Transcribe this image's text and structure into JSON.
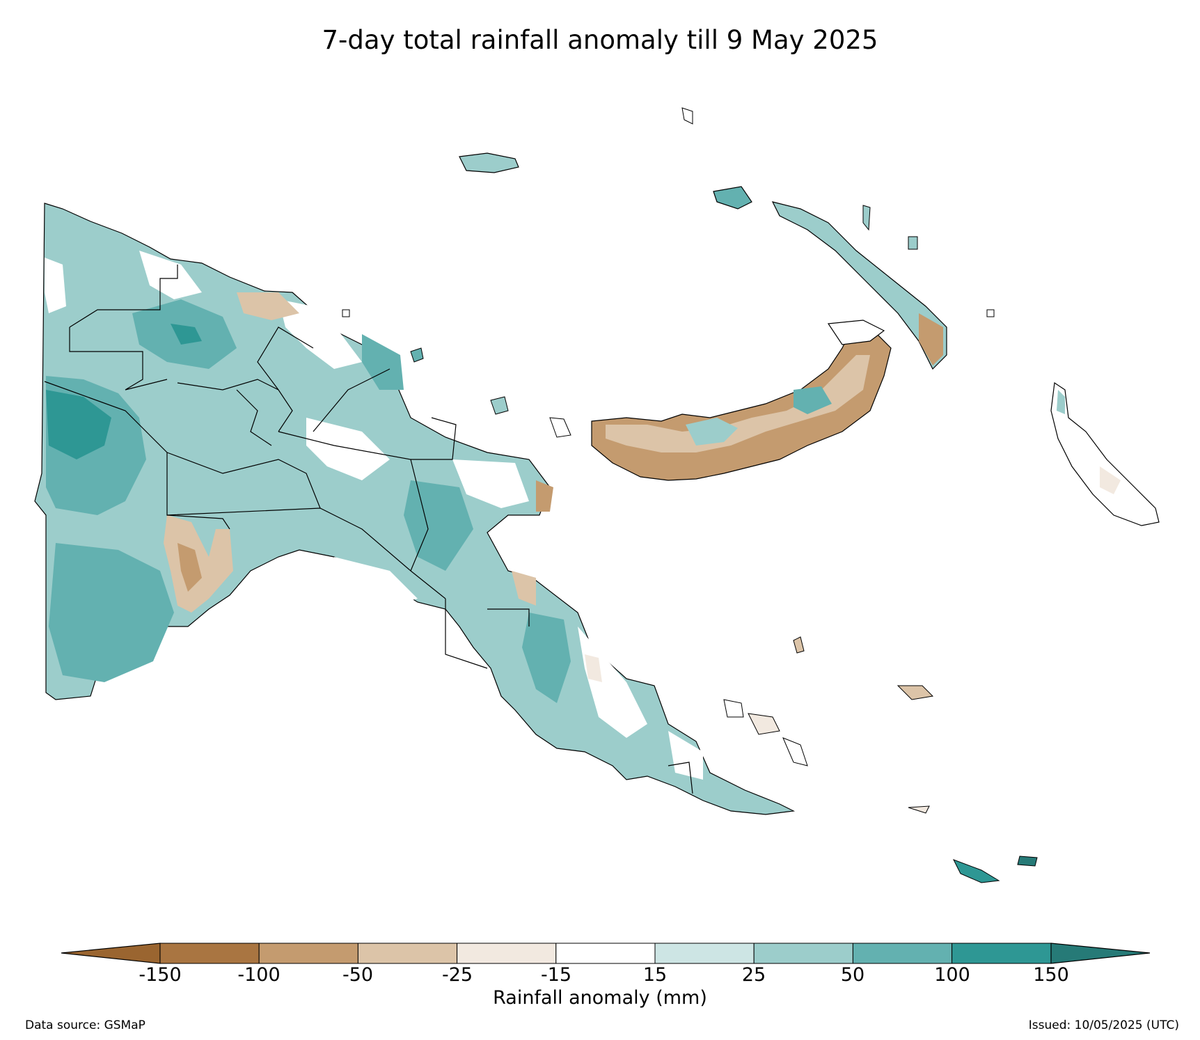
{
  "title": "7-day total rainfall anomaly till 9 May 2025",
  "colorbar": {
    "title": "Rainfall anomaly (mm)",
    "ticks": [
      "-150",
      "-100",
      "-50",
      "-25",
      "-15",
      "15",
      "25",
      "50",
      "100",
      "150"
    ],
    "colors": [
      "#9a6530",
      "#a97541",
      "#c49b6f",
      "#dcc4a8",
      "#f2e9e0",
      "#ffffff",
      "#cde5e4",
      "#9ccdcb",
      "#63b1b0",
      "#2e9794",
      "#267a77"
    ],
    "extend": "both"
  },
  "footer": {
    "source": "Data source: GSMaP",
    "issued": "Issued: 10/05/2025 (UTC)"
  }
}
